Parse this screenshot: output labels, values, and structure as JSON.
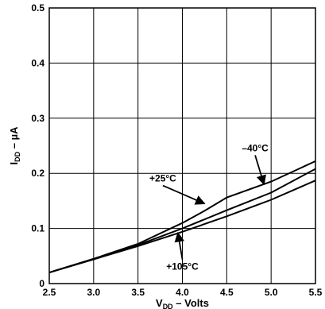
{
  "chart_data": {
    "type": "line",
    "title": "",
    "xlabel": {
      "main": "V",
      "sub": "DD",
      "rest": " – Volts"
    },
    "ylabel": {
      "main": "I",
      "sub": "DD",
      "rest": " – µA"
    },
    "xlim": [
      2.5,
      5.5
    ],
    "ylim": [
      0,
      0.5
    ],
    "xticks": [
      2.5,
      3.0,
      3.5,
      4.0,
      4.5,
      5.0,
      5.5
    ],
    "xtick_labels": [
      "2.5",
      "3.0",
      "3.5",
      "4.0",
      "4.5",
      "5.0",
      "5.5"
    ],
    "yticks": [
      0,
      0.1,
      0.2,
      0.3,
      0.4,
      0.5
    ],
    "ytick_labels": [
      "0",
      "0.1",
      "0.2",
      "0.3",
      "0.4",
      "0.5"
    ],
    "grid": true,
    "series": [
      {
        "name": "–40°C",
        "x": [
          2.5,
          3.0,
          3.5,
          4.0,
          4.25,
          4.5,
          5.0,
          5.5
        ],
        "y": [
          0.02,
          0.045,
          0.072,
          0.11,
          0.132,
          0.156,
          0.185,
          0.222
        ]
      },
      {
        "name": "+25°C",
        "x": [
          2.5,
          3.0,
          3.5,
          4.0,
          4.5,
          5.0,
          5.5
        ],
        "y": [
          0.02,
          0.045,
          0.07,
          0.1,
          0.133,
          0.165,
          0.208
        ]
      },
      {
        "name": "+105°C",
        "x": [
          2.5,
          3.0,
          3.5,
          4.0,
          4.5,
          5.0,
          5.5
        ],
        "y": [
          0.02,
          0.044,
          0.068,
          0.094,
          0.122,
          0.152,
          0.187
        ]
      }
    ],
    "annotations": [
      {
        "text": "–40°C",
        "x": 4.82,
        "y": 0.24,
        "arrow_to": [
          4.92,
          0.18
        ]
      },
      {
        "text": "+25°C",
        "x": 3.78,
        "y": 0.185,
        "arrow_to": [
          4.25,
          0.145
        ]
      },
      {
        "text": "+105°C",
        "x": 4.0,
        "y": 0.025,
        "arrow_to": [
          3.95,
          0.092
        ]
      }
    ]
  }
}
